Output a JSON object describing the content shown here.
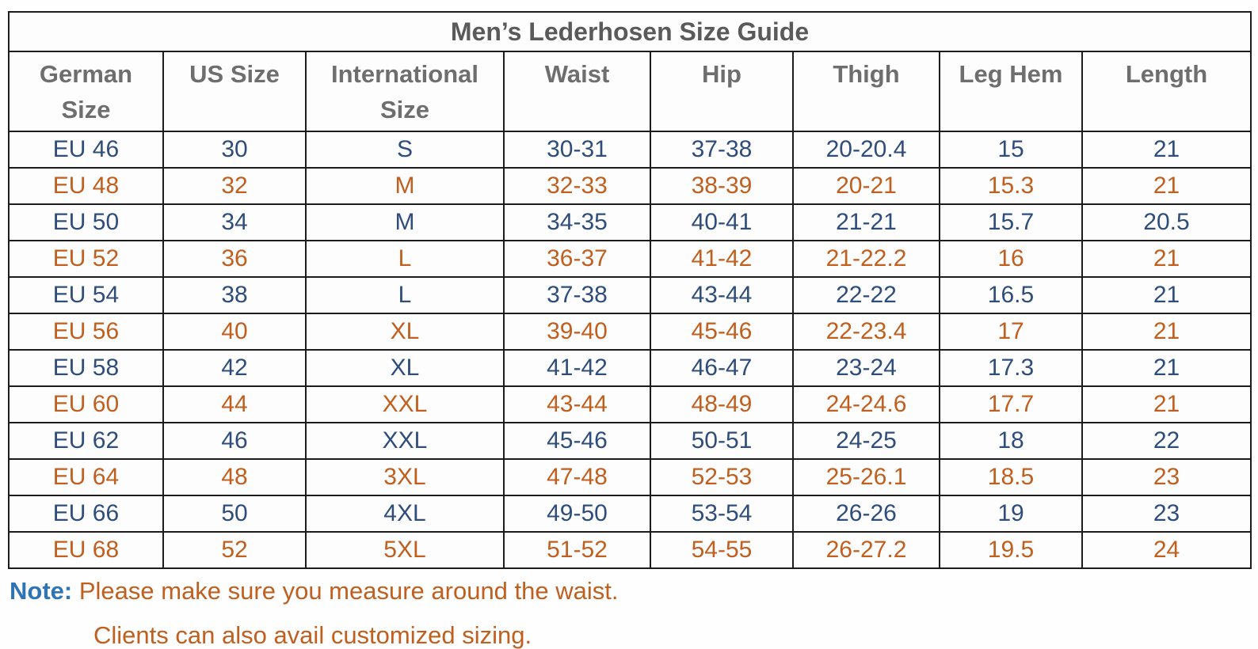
{
  "title": "Men’s Lederhosen Size Guide",
  "table": {
    "headers": [
      "German\nSize",
      "US Size",
      "International\nSize",
      "Waist",
      "Hip",
      "Thigh",
      "Leg Hem",
      "Length"
    ],
    "rows": [
      {
        "color": "blue",
        "values": [
          "EU 46",
          "30",
          "S",
          "30-31",
          "37-38",
          "20-20.4",
          "15",
          "21"
        ]
      },
      {
        "color": "orange",
        "values": [
          "EU 48",
          "32",
          "M",
          "32-33",
          "38-39",
          "20-21",
          "15.3",
          "21"
        ]
      },
      {
        "color": "blue",
        "values": [
          "EU 50",
          "34",
          "M",
          "34-35",
          "40-41",
          "21-21",
          "15.7",
          "20.5"
        ]
      },
      {
        "color": "orange",
        "values": [
          "EU 52",
          "36",
          "L",
          "36-37",
          "41-42",
          "21-22.2",
          "16",
          "21"
        ]
      },
      {
        "color": "blue",
        "values": [
          "EU 54",
          "38",
          "L",
          "37-38",
          "43-44",
          "22-22",
          "16.5",
          "21"
        ]
      },
      {
        "color": "orange",
        "values": [
          "EU 56",
          "40",
          "XL",
          "39-40",
          "45-46",
          "22-23.4",
          "17",
          "21"
        ]
      },
      {
        "color": "blue",
        "values": [
          "EU 58",
          "42",
          "XL",
          "41-42",
          "46-47",
          "23-24",
          "17.3",
          "21"
        ]
      },
      {
        "color": "orange",
        "values": [
          "EU 60",
          "44",
          "XXL",
          "43-44",
          "48-49",
          "24-24.6",
          "17.7",
          "21"
        ]
      },
      {
        "color": "blue",
        "values": [
          "EU 62",
          "46",
          "XXL",
          "45-46",
          "50-51",
          "24-25",
          "18",
          "22"
        ]
      },
      {
        "color": "orange",
        "values": [
          "EU 64",
          "48",
          "3XL",
          "47-48",
          "52-53",
          "25-26.1",
          "18.5",
          "23"
        ]
      },
      {
        "color": "blue",
        "values": [
          "EU 66",
          "50",
          "4XL",
          "49-50",
          "53-54",
          "26-26",
          "19",
          "23"
        ]
      },
      {
        "color": "orange",
        "values": [
          "EU 68",
          "52",
          "5XL",
          "51-52",
          "54-55",
          "26-27.2",
          "19.5",
          "24"
        ]
      }
    ]
  },
  "note": {
    "label": "Note:",
    "line1": "Please make sure you measure around the waist.",
    "line2": "Clients can also avail customized sizing."
  },
  "colors": {
    "row_blue": "#2e4d7b",
    "row_orange": "#c05f1e",
    "note_label_blue": "#2e75b6",
    "title_gray": "#5a5a5a",
    "header_gray": "#6e6e6e",
    "border_black": "#1c1c1c"
  }
}
